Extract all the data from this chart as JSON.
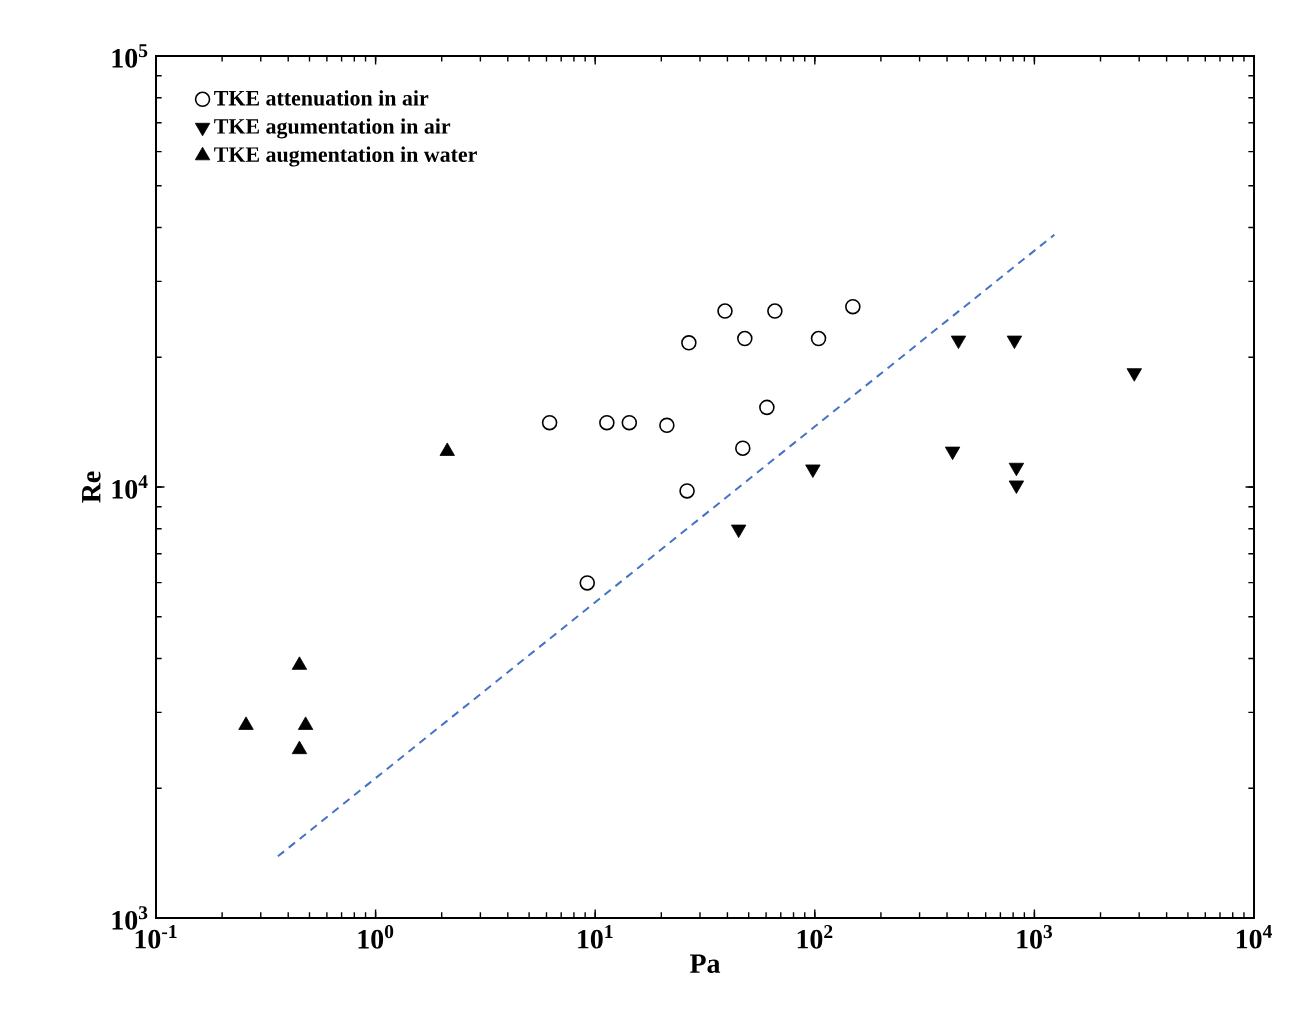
{
  "chart_data": {
    "type": "scatter",
    "xlabel": "Pa",
    "ylabel": "Re",
    "log": "xy",
    "grid": false,
    "legend": "top left",
    "xlim": [
      0.1,
      10000
    ],
    "ylim": [
      1000,
      100000
    ],
    "xticks": [
      {
        "value": 0.1,
        "label": "10$^{-1}$"
      },
      {
        "value": 1,
        "label": "10$^{0}$"
      },
      {
        "value": 10,
        "label": "10$^{1}$"
      },
      {
        "value": 100,
        "label": "10$^{2}$"
      },
      {
        "value": 1000,
        "label": "10$^{3}$"
      },
      {
        "value": 10000,
        "label": "10$^{4}$"
      }
    ],
    "yticks": [
      {
        "value": 1000,
        "label": "10$^{3}$"
      },
      {
        "value": 10000,
        "label": "10$^{4}$"
      },
      {
        "value": 100000,
        "label": "10$^{5}$"
      }
    ],
    "series": [
      {
        "name": "TKE attenuation in air",
        "color": "#000000",
        "marker": "circle",
        "x": [
          6.2,
          11.3,
          14.3,
          21.2,
          9.2,
          26.2,
          26.7,
          39,
          48,
          47,
          60.5,
          65.8,
          104,
          149
        ],
        "values": [
          14100,
          14100,
          14100,
          13900,
          5990,
          9790,
          21600,
          25600,
          22100,
          12300,
          15300,
          25600,
          22100,
          26200
        ]
      },
      {
        "name": "TKE agumentation in air",
        "color": "#000000",
        "marker": "triangle-down",
        "x": [
          45,
          98,
          424,
          451,
          811,
          828,
          828,
          2850
        ],
        "values": [
          7980,
          11000,
          12100,
          21900,
          21900,
          11100,
          10100,
          18400
        ]
      },
      {
        "name": "TKE augmentation in water",
        "color": "#000000",
        "marker": "triangle",
        "x": [
          0.257,
          0.45,
          0.48,
          0.45,
          2.12
        ],
        "values": [
          2800,
          3860,
          2800,
          2460,
          12100
        ]
      },
      {
        "type": "line",
        "color": "#4472c4",
        "line_style": "dashed",
        "marker": "none",
        "x": [
          0.359,
          1233
        ],
        "values": [
          1390,
          38500
        ]
      }
    ]
  }
}
